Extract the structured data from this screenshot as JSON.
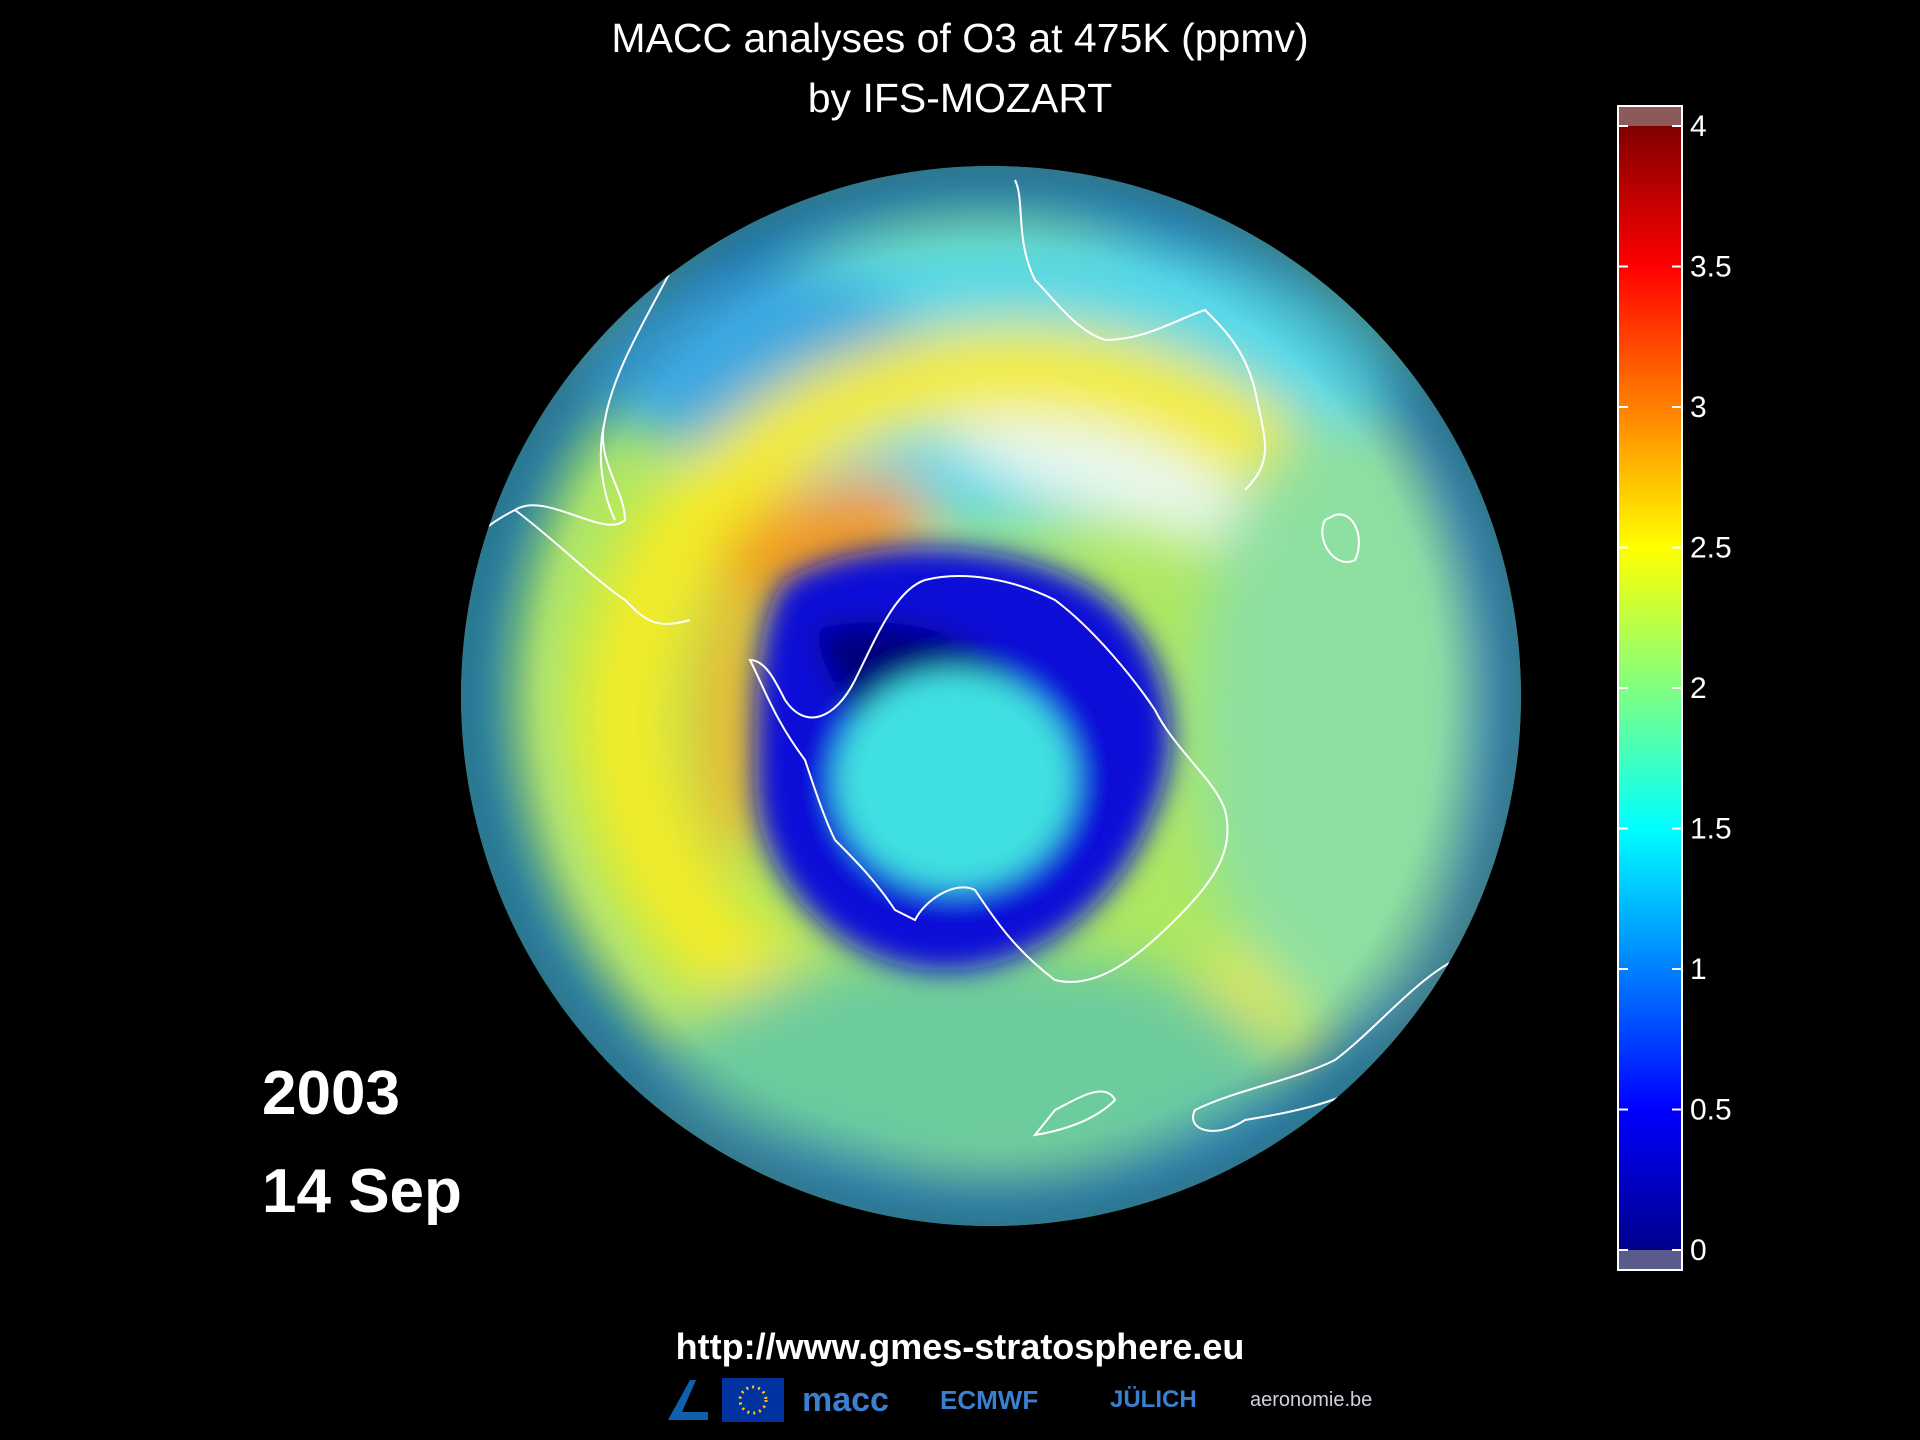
{
  "title": {
    "line1": "MACC analyses of O3 at 475K (ppmv)",
    "line2": "by IFS-MOZART"
  },
  "date": {
    "year": "2003",
    "day": "14 Sep"
  },
  "colorbar": {
    "ticks": [
      "4",
      "3.5",
      "3",
      "2.5",
      "2",
      "1.5",
      "1",
      "0.5",
      "0"
    ],
    "values": [
      4,
      3.5,
      3,
      2.5,
      2,
      1.5,
      1,
      0.5,
      0
    ],
    "range": [
      0,
      4
    ],
    "colormap": [
      "#00008c",
      "#0000ff",
      "#0080ff",
      "#00ffff",
      "#80ff80",
      "#ffff00",
      "#ff8000",
      "#ff0000",
      "#800000"
    ],
    "over_color": "#8c5a5a",
    "under_color": "#5a5a8c"
  },
  "footer": {
    "url": "http://www.gmes-stratosphere.eu",
    "logos": {
      "macc": "macc",
      "ecmwf": "ECMWF",
      "juelich": "JÜLICH",
      "aeronomie": "aeronomie.be"
    }
  },
  "colors": {
    "background": "#000000",
    "text": "#ffffff",
    "coastline": "#ffffff"
  }
}
